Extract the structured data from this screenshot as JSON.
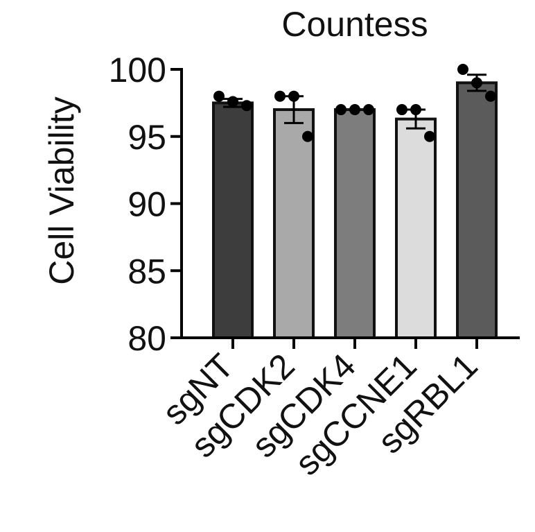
{
  "chart_data": {
    "type": "bar",
    "title": "Countess",
    "ylabel": "Cell Viability",
    "xlabel": "",
    "ylim": [
      80,
      100
    ],
    "yticks": [
      "80",
      "85",
      "90",
      "95",
      "100"
    ],
    "categories": [
      "sgNT",
      "sgCDK2",
      "sgCDK4",
      "sgCCNE1",
      "sgRBL1"
    ],
    "values": [
      97.5,
      97.0,
      97.0,
      96.3,
      99.0
    ],
    "error_sem": [
      0.3,
      1.0,
      0.0,
      0.7,
      0.6
    ],
    "points": [
      [
        98.0,
        97.6,
        97.3
      ],
      [
        98.0,
        98.0,
        95.0
      ],
      [
        97.0,
        97.0,
        97.0
      ],
      [
        97.0,
        97.0,
        95.0
      ],
      [
        100.0,
        99.0,
        98.0
      ]
    ],
    "bar_colors": [
      "#3d3d3d",
      "#a9a9a9",
      "#7d7d7d",
      "#dcdcdc",
      "#5b5b5b"
    ],
    "grid": false,
    "legend": "none"
  }
}
